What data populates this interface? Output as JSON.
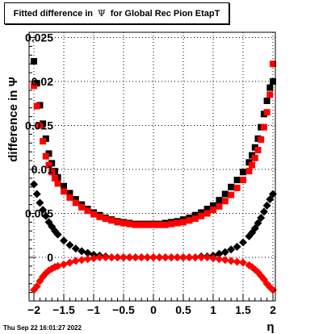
{
  "title": {
    "prefix": "Fitted difference in",
    "symbol": "Ψ",
    "suffix": "for Global Rec Pion EtapT"
  },
  "footer": "Thu Sep 22 16:01:27 2022",
  "colors": {
    "series_black": "#000000",
    "series_red": "#ff0000",
    "grid": "#000000"
  },
  "chart_data": {
    "type": "scatter",
    "title": "Fitted difference in Ψ for Global Rec Pion EtapT",
    "xlabel": "η",
    "ylabel": "difference in Ψ",
    "xlim": [
      -2.1,
      2.1
    ],
    "ylim": [
      -0.005,
      0.026
    ],
    "grid": true,
    "x_ticks": [
      -2,
      -1.5,
      -1,
      -0.5,
      0,
      0.5,
      1,
      1.5,
      2
    ],
    "x_tick_labels": [
      "−2",
      "−1.5",
      "−1",
      "−0.5",
      "0",
      "0.5",
      "1",
      "1.5",
      "2"
    ],
    "y_ticks": [
      0,
      0.005,
      0.01,
      0.015,
      0.02,
      0.025
    ],
    "y_tick_labels": [
      "0",
      "0.005",
      "0.01",
      "0.015",
      "0.02",
      "0.025"
    ],
    "series": [
      {
        "color": "#000000",
        "marker": "square",
        "x": [
          -2.0,
          -1.95,
          -1.9,
          -1.85,
          -1.8,
          -1.75,
          -1.7,
          -1.65,
          -1.6,
          -1.5,
          -1.4,
          -1.3,
          -1.2,
          -1.1,
          -1.0,
          -0.9,
          -0.8,
          -0.7,
          -0.6,
          -0.5,
          -0.4,
          -0.3,
          -0.2,
          -0.1,
          0.0,
          0.1,
          0.2,
          0.3,
          0.4,
          0.5,
          0.6,
          0.7,
          0.8,
          0.9,
          1.0,
          1.1,
          1.2,
          1.3,
          1.4,
          1.5,
          1.6,
          1.65,
          1.7,
          1.75,
          1.8,
          1.85,
          1.9,
          1.95,
          2.0
        ],
        "y": [
          0.0223,
          0.0198,
          0.0173,
          0.0152,
          0.0135,
          0.0118,
          0.0107,
          0.0098,
          0.0091,
          0.0081,
          0.0073,
          0.0066,
          0.006,
          0.0055,
          0.0051,
          0.0048,
          0.0045,
          0.0043,
          0.0041,
          0.004,
          0.0039,
          0.0038,
          0.0038,
          0.0038,
          0.0038,
          0.0038,
          0.0039,
          0.004,
          0.0041,
          0.0043,
          0.0045,
          0.0048,
          0.0051,
          0.0055,
          0.0059,
          0.0065,
          0.0072,
          0.008,
          0.0088,
          0.0097,
          0.0108,
          0.0116,
          0.0125,
          0.0135,
          0.0148,
          0.0163,
          0.0178,
          0.0193,
          0.02
        ]
      },
      {
        "color": "#ff0000",
        "marker": "square",
        "x": [
          -2.0,
          -1.95,
          -1.9,
          -1.85,
          -1.8,
          -1.75,
          -1.7,
          -1.65,
          -1.6,
          -1.5,
          -1.4,
          -1.3,
          -1.2,
          -1.1,
          -1.0,
          -0.9,
          -0.8,
          -0.7,
          -0.6,
          -0.5,
          -0.4,
          -0.3,
          -0.2,
          -0.1,
          0.0,
          0.1,
          0.2,
          0.3,
          0.4,
          0.5,
          0.6,
          0.7,
          0.8,
          0.9,
          1.0,
          1.1,
          1.2,
          1.3,
          1.4,
          1.5,
          1.6,
          1.65,
          1.7,
          1.75,
          1.8,
          1.85,
          1.9,
          1.95,
          2.0
        ],
        "y": [
          0.0195,
          0.0172,
          0.015,
          0.0132,
          0.0115,
          0.0105,
          0.0097,
          0.009,
          0.0084,
          0.0075,
          0.0068,
          0.0062,
          0.0057,
          0.0053,
          0.0049,
          0.0046,
          0.0044,
          0.0042,
          0.004,
          0.0039,
          0.0038,
          0.0037,
          0.0037,
          0.0037,
          0.0037,
          0.0037,
          0.0037,
          0.0038,
          0.0039,
          0.004,
          0.0042,
          0.0044,
          0.0047,
          0.005,
          0.0054,
          0.0058,
          0.0064,
          0.0071,
          0.0079,
          0.0088,
          0.0098,
          0.0105,
          0.0113,
          0.0122,
          0.0134,
          0.0148,
          0.0165,
          0.0185,
          0.022
        ]
      },
      {
        "color": "#000000",
        "marker": "diamond",
        "x": [
          -2.0,
          -1.95,
          -1.9,
          -1.85,
          -1.8,
          -1.75,
          -1.7,
          -1.65,
          -1.6,
          -1.5,
          -1.4,
          -1.3,
          -1.2,
          -1.1,
          -1.0,
          -0.9,
          -0.8,
          -0.7,
          -0.6,
          -0.5,
          -0.4,
          -0.3,
          -0.2,
          -0.1,
          0.0,
          0.1,
          0.2,
          0.3,
          0.4,
          0.5,
          0.6,
          0.7,
          0.8,
          0.9,
          1.0,
          1.1,
          1.2,
          1.3,
          1.4,
          1.5,
          1.6,
          1.65,
          1.7,
          1.75,
          1.8,
          1.85,
          1.9,
          1.95,
          2.0
        ],
        "y": [
          0.0083,
          0.0072,
          0.0062,
          0.0054,
          0.0047,
          0.004,
          0.0035,
          0.003,
          0.0026,
          0.0019,
          0.0014,
          0.001,
          0.0007,
          0.0005,
          0.0003,
          0.0002,
          0.0001,
          0.0,
          0.0,
          0.0,
          0.0,
          0.0,
          0.0,
          0.0,
          0.0,
          0.0,
          0.0,
          0.0,
          0.0,
          0.0,
          0.0,
          0.0,
          0.0001,
          0.0001,
          0.0002,
          0.0004,
          0.0006,
          0.0009,
          0.0012,
          0.0017,
          0.0024,
          0.0028,
          0.0033,
          0.0039,
          0.0045,
          0.0052,
          0.0059,
          0.0066,
          0.0072
        ]
      },
      {
        "color": "#ff0000",
        "marker": "diamond",
        "x": [
          -2.0,
          -1.95,
          -1.9,
          -1.85,
          -1.8,
          -1.75,
          -1.7,
          -1.65,
          -1.6,
          -1.5,
          -1.4,
          -1.3,
          -1.2,
          -1.1,
          -1.0,
          -0.9,
          -0.8,
          -0.7,
          -0.6,
          -0.5,
          -0.4,
          -0.3,
          -0.2,
          -0.1,
          0.0,
          0.1,
          0.2,
          0.3,
          0.4,
          0.5,
          0.6,
          0.7,
          0.8,
          0.9,
          1.0,
          1.1,
          1.2,
          1.3,
          1.4,
          1.5,
          1.6,
          1.65,
          1.7,
          1.75,
          1.8,
          1.85,
          1.9,
          1.95,
          2.0
        ],
        "y": [
          -0.0037,
          -0.0033,
          -0.0027,
          -0.0022,
          -0.0018,
          -0.0015,
          -0.0013,
          -0.0011,
          -0.001,
          -0.0008,
          -0.0006,
          -0.0004,
          -0.0003,
          -0.0002,
          -0.0001,
          0.0,
          0.0,
          0.0,
          0.0,
          0.0,
          0.0,
          0.0,
          0.0,
          0.0,
          0.0,
          0.0,
          0.0,
          0.0,
          0.0,
          0.0,
          0.0,
          0.0,
          0.0,
          0.0,
          -0.0001,
          -0.0002,
          -0.0003,
          -0.0004,
          -0.0005,
          -0.0006,
          -0.0009,
          -0.0011,
          -0.0014,
          -0.0017,
          -0.0021,
          -0.0025,
          -0.003,
          -0.0034,
          -0.0037
        ]
      }
    ]
  }
}
